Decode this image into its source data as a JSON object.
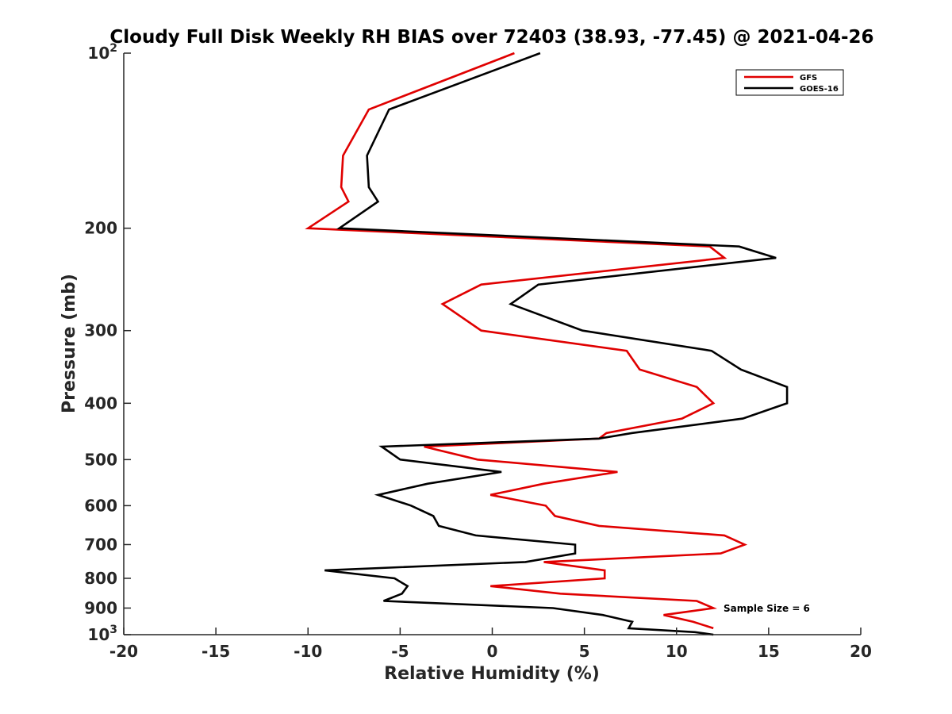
{
  "chart_data": {
    "type": "line",
    "title": "Cloudy Full Disk Weekly RH BIAS over 72403 (38.93, -77.45) @ 2021-04-26",
    "xlabel": "Relative Humidity (%)",
    "ylabel": "Pressure (mb)",
    "xlim": [
      -20,
      20
    ],
    "ylim": [
      1000,
      100
    ],
    "y_scale": "log",
    "y_reversed": true,
    "grid": false,
    "legend_position": "top-right",
    "x_ticks": [
      -20,
      -15,
      -10,
      -5,
      0,
      5,
      10,
      15,
      20
    ],
    "x_tick_labels": [
      "-20",
      "-15",
      "-10",
      "-5",
      "0",
      "5",
      "10",
      "15",
      "20"
    ],
    "y_ticks": [
      100,
      200,
      300,
      400,
      500,
      600,
      700,
      800,
      900,
      1000
    ],
    "y_tick_labels": [
      {
        "base": "10",
        "sup": "2"
      },
      {
        "base": "200"
      },
      {
        "base": "300"
      },
      {
        "base": "400"
      },
      {
        "base": "500"
      },
      {
        "base": "600"
      },
      {
        "base": "700"
      },
      {
        "base": "800"
      },
      {
        "base": "900"
      },
      {
        "base": "10",
        "sup": "3"
      }
    ],
    "annotation": "Sample Size = 6",
    "series": [
      {
        "name": "GFS",
        "color": "#e00000",
        "points": [
          [
            1.2,
            100
          ],
          [
            -6.7,
            125
          ],
          [
            -8.1,
            150
          ],
          [
            -8.2,
            170
          ],
          [
            -7.8,
            180
          ],
          [
            -10.0,
            200
          ],
          [
            11.8,
            215
          ],
          [
            12.6,
            225
          ],
          [
            -0.6,
            250
          ],
          [
            -2.7,
            270
          ],
          [
            -0.6,
            300
          ],
          [
            7.3,
            325
          ],
          [
            8.0,
            350
          ],
          [
            11.1,
            375
          ],
          [
            12.0,
            400
          ],
          [
            10.3,
            425
          ],
          [
            6.2,
            450
          ],
          [
            5.8,
            460
          ],
          [
            -3.7,
            475
          ],
          [
            -0.8,
            500
          ],
          [
            6.8,
            525
          ],
          [
            2.8,
            550
          ],
          [
            -0.1,
            575
          ],
          [
            2.9,
            600
          ],
          [
            3.4,
            625
          ],
          [
            5.8,
            650
          ],
          [
            12.6,
            675
          ],
          [
            13.7,
            700
          ],
          [
            12.4,
            725
          ],
          [
            2.8,
            750
          ],
          [
            6.1,
            775
          ],
          [
            6.1,
            800
          ],
          [
            -0.1,
            825
          ],
          [
            3.7,
            850
          ],
          [
            11.1,
            875
          ],
          [
            12.0,
            900
          ],
          [
            9.3,
            925
          ],
          [
            10.9,
            950
          ],
          [
            12.0,
            975
          ]
        ]
      },
      {
        "name": "GOES-16",
        "color": "#000000",
        "points": [
          [
            2.6,
            100
          ],
          [
            -5.6,
            125
          ],
          [
            -6.8,
            150
          ],
          [
            -6.7,
            170
          ],
          [
            -6.2,
            180
          ],
          [
            -8.3,
            200
          ],
          [
            13.4,
            215
          ],
          [
            15.4,
            225
          ],
          [
            2.5,
            250
          ],
          [
            1.0,
            270
          ],
          [
            4.9,
            300
          ],
          [
            11.9,
            325
          ],
          [
            13.5,
            350
          ],
          [
            16.0,
            375
          ],
          [
            16.0,
            400
          ],
          [
            13.6,
            425
          ],
          [
            7.6,
            450
          ],
          [
            5.8,
            460
          ],
          [
            -6.0,
            475
          ],
          [
            -5.0,
            500
          ],
          [
            0.5,
            525
          ],
          [
            -3.5,
            550
          ],
          [
            -6.2,
            575
          ],
          [
            -4.4,
            600
          ],
          [
            -3.2,
            625
          ],
          [
            -2.9,
            650
          ],
          [
            -0.9,
            675
          ],
          [
            4.5,
            700
          ],
          [
            4.5,
            725
          ],
          [
            1.8,
            750
          ],
          [
            -9.1,
            775
          ],
          [
            -5.3,
            800
          ],
          [
            -4.6,
            825
          ],
          [
            -4.9,
            850
          ],
          [
            -5.9,
            875
          ],
          [
            3.3,
            900
          ],
          [
            6.0,
            925
          ],
          [
            7.6,
            950
          ],
          [
            7.4,
            975
          ],
          [
            11.0,
            990
          ],
          [
            12.0,
            1000
          ]
        ]
      }
    ]
  }
}
